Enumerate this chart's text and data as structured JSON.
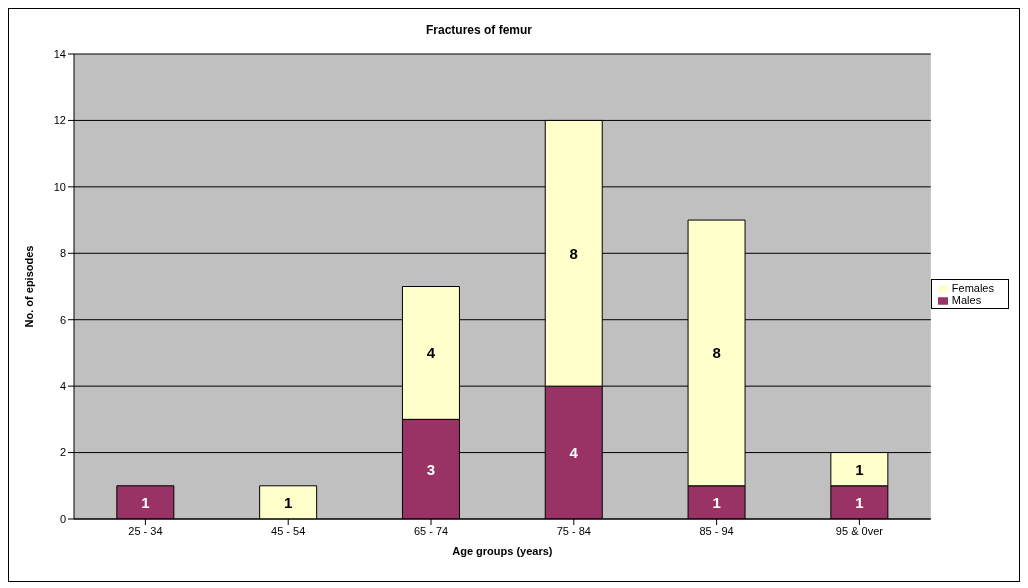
{
  "chart_data": {
    "type": "bar",
    "title": "Fractures of femur",
    "xlabel": "Age groups (years)",
    "ylabel": "No. of episodes",
    "categories": [
      "25 - 34",
      "45 - 54",
      "65 - 74",
      "75 - 84",
      "85 - 94",
      "95 & 0ver"
    ],
    "series": [
      {
        "name": "Males",
        "color": "#993366",
        "values": [
          1,
          null,
          3,
          4,
          1,
          1
        ]
      },
      {
        "name": "Females",
        "color": "#ffffcc",
        "values": [
          null,
          1,
          4,
          8,
          8,
          1
        ]
      }
    ],
    "stacked": true,
    "data_labels": true,
    "ylim": [
      0,
      14
    ],
    "yticks": [
      0,
      2,
      4,
      6,
      8,
      10,
      12,
      14
    ],
    "grid": "y",
    "legend": "right"
  }
}
